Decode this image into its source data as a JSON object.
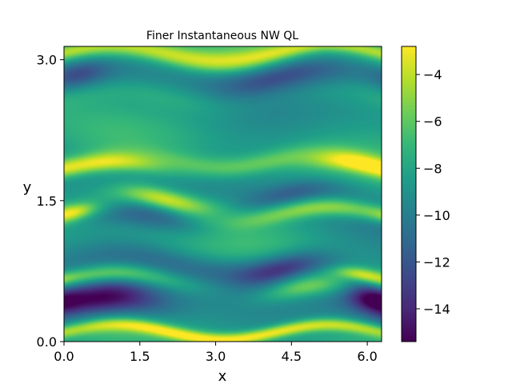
{
  "chart_data": {
    "type": "heatmap",
    "title": "Finer Instantaneous NW QL",
    "xlabel": "x",
    "ylabel": "y",
    "xlim": [
      0,
      6.2832
    ],
    "ylim": [
      0,
      3.1416
    ],
    "x_ticks": [
      0.0,
      1.5,
      3.0,
      4.5,
      6.0
    ],
    "x_tick_labels": [
      "0.0",
      "1.5",
      "3.0",
      "4.5",
      "6.0"
    ],
    "y_ticks": [
      0.0,
      1.5,
      3.0
    ],
    "y_tick_labels": [
      "0.0",
      "1.5",
      "3.0"
    ],
    "colormap": "viridis",
    "colorbar": {
      "range": [
        -15.4,
        -2.8
      ],
      "ticks": [
        -4,
        -6,
        -8,
        -10,
        -12,
        -14
      ],
      "tick_labels": [
        "−4",
        "−6",
        "−8",
        "−10",
        "−12",
        "−14"
      ]
    },
    "features": [
      {
        "x": 2.0,
        "y": 3.05,
        "sx": 2.0,
        "sy": 0.08,
        "value": 4.5
      },
      {
        "x": 5.5,
        "y": 3.08,
        "sx": 1.2,
        "sy": 0.05,
        "value": 3.0
      },
      {
        "x": 4.4,
        "y": 2.82,
        "sx": 1.0,
        "sy": 0.12,
        "value": -4.5
      },
      {
        "x": 0.3,
        "y": 2.8,
        "sx": 0.4,
        "sy": 0.1,
        "value": -2.5
      },
      {
        "x": 1.5,
        "y": 2.6,
        "sx": 1.5,
        "sy": 0.1,
        "value": 1.5
      },
      {
        "x": 3.5,
        "y": 1.93,
        "sx": 1.5,
        "sy": 0.08,
        "value": 3.0
      },
      {
        "x": 5.8,
        "y": 1.85,
        "sx": 0.6,
        "sy": 0.07,
        "value": 4.0
      },
      {
        "x": 0.8,
        "y": 1.83,
        "sx": 0.8,
        "sy": 0.07,
        "value": 4.5
      },
      {
        "x": 2.0,
        "y": 1.5,
        "sx": 0.7,
        "sy": 0.08,
        "value": 5.5
      },
      {
        "x": 5.2,
        "y": 1.35,
        "sx": 1.2,
        "sy": 0.07,
        "value": 4.5
      },
      {
        "x": 0.2,
        "y": 1.35,
        "sx": 0.3,
        "sy": 0.06,
        "value": 3.0
      },
      {
        "x": 1.6,
        "y": 1.3,
        "sx": 0.8,
        "sy": 0.1,
        "value": -3.0
      },
      {
        "x": 4.6,
        "y": 1.55,
        "sx": 0.8,
        "sy": 0.08,
        "value": -2.5
      },
      {
        "x": 4.3,
        "y": 0.75,
        "sx": 0.7,
        "sy": 0.1,
        "value": -5.0
      },
      {
        "x": 0.9,
        "y": 0.65,
        "sx": 1.0,
        "sy": 0.07,
        "value": 4.5
      },
      {
        "x": 4.8,
        "y": 0.52,
        "sx": 0.6,
        "sy": 0.08,
        "value": 3.5
      },
      {
        "x": 5.9,
        "y": 0.67,
        "sx": 0.4,
        "sy": 0.05,
        "value": 3.5
      },
      {
        "x": 0.7,
        "y": 0.38,
        "sx": 0.9,
        "sy": 0.13,
        "value": -7.0
      },
      {
        "x": 6.1,
        "y": 0.45,
        "sx": 0.35,
        "sy": 0.1,
        "value": -4.0
      },
      {
        "x": 3.5,
        "y": 0.1,
        "sx": 3.0,
        "sy": 0.05,
        "value": 6.0
      },
      {
        "x": 2.8,
        "y": 0.85,
        "sx": 1.5,
        "sy": 0.1,
        "value": -2.0
      }
    ]
  }
}
